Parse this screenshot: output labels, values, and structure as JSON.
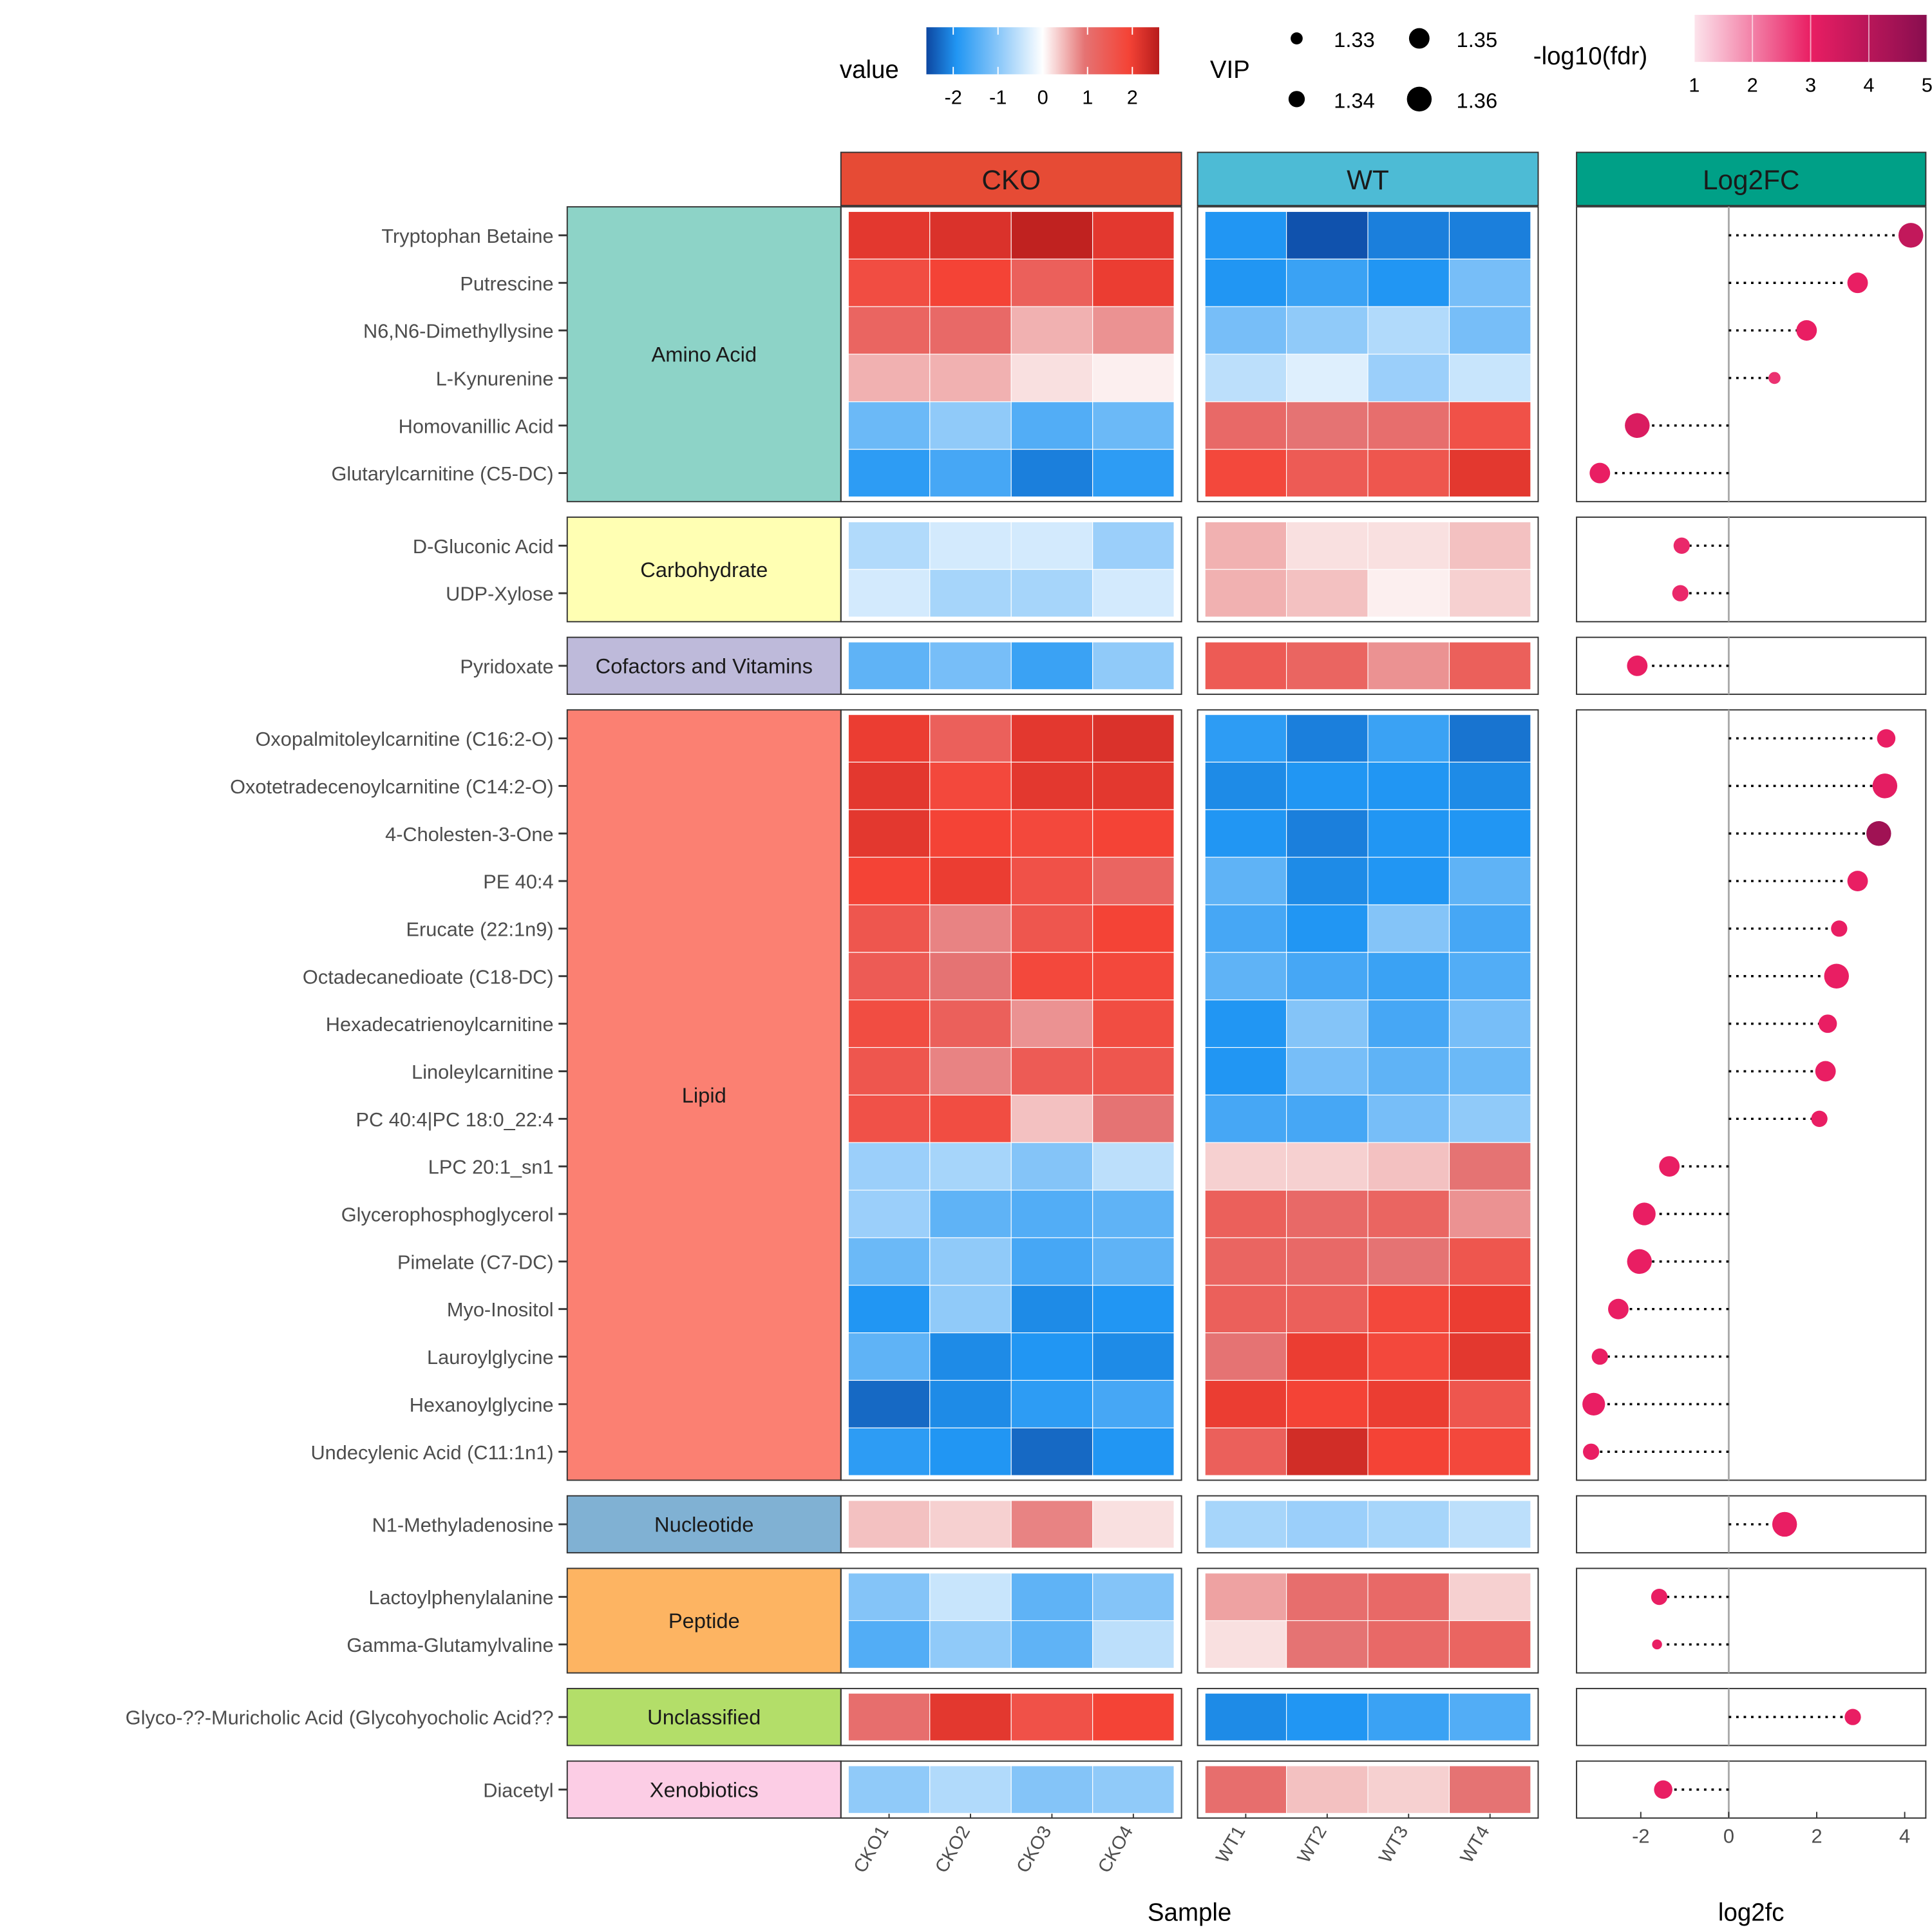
{
  "chart_data": {
    "type": "heatmap",
    "panels": [
      {
        "label": "CKO",
        "color": "#E64B35",
        "samples": [
          "CKO1",
          "CKO2",
          "CKO3",
          "CKO4"
        ]
      },
      {
        "label": "WT",
        "color": "#4DBBD5",
        "samples": [
          "WT1",
          "WT2",
          "WT3",
          "WT4"
        ]
      }
    ],
    "fc_panel": {
      "label": "Log2FC",
      "color": "#00A087",
      "xlabel": "log2fc",
      "xlim": [
        -3.46,
        4.48
      ],
      "ticks": [
        -2,
        0,
        2,
        4
      ]
    },
    "xlabel": "Sample",
    "legend": {
      "value": {
        "title": "value",
        "ticks": [
          -2,
          -1,
          0,
          1,
          2
        ],
        "range": [
          -2.6,
          2.6
        ]
      },
      "vip": {
        "title": "VIP",
        "entries": [
          1.33,
          1.34,
          1.35,
          1.36
        ]
      },
      "fdr": {
        "title": "-log10(fdr)",
        "ticks": [
          1,
          2,
          3,
          4,
          5
        ]
      }
    },
    "groups": [
      {
        "name": "Amino Acid",
        "color": "#8DD3C7",
        "rows": [
          {
            "name": "Tryptophan Betaine",
            "values": [
              2.1,
              2.2,
              2.5,
              2.1,
              -1.9,
              -2.5,
              -2.1,
              -2.1
            ],
            "log2fc": 4.14,
            "fdr": 3.8,
            "vip": 1.36
          },
          {
            "name": "Putrescine",
            "values": [
              1.7,
              1.9,
              1.3,
              2.0,
              -1.9,
              -1.7,
              -1.9,
              -1.2
            ],
            "log2fc": 2.93,
            "fdr": 3.0,
            "vip": 1.35
          },
          {
            "name": "N6,N6-Dimethyllysine",
            "values": [
              1.2,
              1.1,
              0.5,
              0.7,
              -1.2,
              -1.0,
              -0.7,
              -1.2
            ],
            "log2fc": 1.77,
            "fdr": 3.0,
            "vip": 1.35
          },
          {
            "name": "L-Kynurenine",
            "values": [
              0.5,
              0.5,
              0.2,
              0.1,
              -0.6,
              -0.3,
              -0.9,
              -0.5
            ],
            "log2fc": 1.04,
            "fdr": 2.8,
            "vip": 1.33
          },
          {
            "name": "Homovanillic Acid",
            "values": [
              -1.3,
              -1.0,
              -1.5,
              -1.3,
              1.1,
              0.9,
              1.0,
              1.6
            ],
            "log2fc": -2.08,
            "fdr": 3.3,
            "vip": 1.36
          },
          {
            "name": "Glutarylcarnitine (C5-DC)",
            "values": [
              -1.8,
              -1.6,
              -2.1,
              -1.8,
              1.8,
              1.4,
              1.5,
              2.1
            ],
            "log2fc": -2.93,
            "fdr": 3.0,
            "vip": 1.35
          }
        ]
      },
      {
        "name": "Carbohydrate",
        "color": "#FFFFB3",
        "rows": [
          {
            "name": "D-Gluconic Acid",
            "values": [
              -0.7,
              -0.4,
              -0.4,
              -0.9,
              0.5,
              0.2,
              0.2,
              0.4
            ],
            "log2fc": -1.07,
            "fdr": 2.9,
            "vip": 1.34
          },
          {
            "name": "UDP-Xylose",
            "values": [
              -0.4,
              -0.8,
              -0.8,
              -0.4,
              0.5,
              0.4,
              0.1,
              0.3
            ],
            "log2fc": -1.1,
            "fdr": 2.9,
            "vip": 1.34
          }
        ]
      },
      {
        "name": "Cofactors and Vitamins",
        "color": "#BEBADA",
        "rows": [
          {
            "name": "Pyridoxate",
            "values": [
              -1.4,
              -1.2,
              -1.7,
              -1.0,
              1.4,
              1.2,
              0.7,
              1.3
            ],
            "log2fc": -2.08,
            "fdr": 3.0,
            "vip": 1.35
          }
        ]
      },
      {
        "name": "Lipid",
        "color": "#FB8072",
        "rows": [
          {
            "name": "Oxopalmitoleylcarnitine (C16:2-O)",
            "values": [
              2.0,
              1.3,
              2.1,
              2.2,
              -1.8,
              -2.1,
              -1.7,
              -2.2
            ],
            "log2fc": 3.58,
            "fdr": 3.0,
            "vip": 1.345
          },
          {
            "name": "Oxotetradecenoylcarnitine (C14:2-O)",
            "values": [
              2.1,
              1.8,
              2.1,
              2.1,
              -2.0,
              -1.9,
              -1.9,
              -2.0
            ],
            "log2fc": 3.55,
            "fdr": 3.1,
            "vip": 1.36
          },
          {
            "name": "4-Cholesten-3-One",
            "values": [
              2.1,
              1.9,
              1.8,
              1.9,
              -1.9,
              -2.1,
              -1.9,
              -1.9
            ],
            "log2fc": 3.41,
            "fdr": 4.5,
            "vip": 1.36
          },
          {
            "name": "PE 40:4",
            "values": [
              1.9,
              2.0,
              1.6,
              1.2,
              -1.4,
              -2.0,
              -1.9,
              -1.4
            ],
            "log2fc": 2.93,
            "fdr": 3.0,
            "vip": 1.35
          },
          {
            "name": "Erucate (22:1n9)",
            "values": [
              1.5,
              0.8,
              1.5,
              1.9,
              -1.6,
              -1.9,
              -1.1,
              -1.6
            ],
            "log2fc": 2.51,
            "fdr": 3.0,
            "vip": 1.34
          },
          {
            "name": "Octadecanedioate (C18-DC)",
            "values": [
              1.4,
              0.9,
              1.8,
              1.8,
              -1.4,
              -1.6,
              -1.7,
              -1.5
            ],
            "log2fc": 2.45,
            "fdr": 3.0,
            "vip": 1.36
          },
          {
            "name": "Hexadecatrienoylcarnitine",
            "values": [
              1.7,
              1.3,
              0.7,
              1.7,
              -1.9,
              -1.1,
              -1.6,
              -1.2
            ],
            "log2fc": 2.25,
            "fdr": 3.0,
            "vip": 1.345
          },
          {
            "name": "Linoleylcarnitine",
            "values": [
              1.5,
              0.8,
              1.4,
              1.5,
              -1.9,
              -1.2,
              -1.4,
              -1.3
            ],
            "log2fc": 2.2,
            "fdr": 3.0,
            "vip": 1.35
          },
          {
            "name": "PC 40:4|PC 18:0_22:4",
            "values": [
              1.6,
              1.7,
              0.4,
              0.9,
              -1.6,
              -1.6,
              -1.2,
              -1.0
            ],
            "log2fc": 2.06,
            "fdr": 3.0,
            "vip": 1.34
          },
          {
            "name": "LPC 20:1_sn1",
            "values": [
              -0.9,
              -0.8,
              -1.1,
              -0.6,
              0.3,
              0.3,
              0.4,
              0.9
            ],
            "log2fc": -1.35,
            "fdr": 3.0,
            "vip": 1.35
          },
          {
            "name": "Glycerophosphoglycerol",
            "values": [
              -0.9,
              -1.4,
              -1.5,
              -1.4,
              1.3,
              1.1,
              1.2,
              0.7
            ],
            "log2fc": -1.92,
            "fdr": 3.0,
            "vip": 1.355
          },
          {
            "name": "Pimelate (C7-DC)",
            "values": [
              -1.3,
              -1.0,
              -1.6,
              -1.4,
              1.2,
              1.1,
              0.9,
              1.5
            ],
            "log2fc": -2.03,
            "fdr": 3.0,
            "vip": 1.36
          },
          {
            "name": "Myo-Inositol",
            "values": [
              -1.9,
              -1.0,
              -2.0,
              -1.9,
              1.3,
              1.3,
              1.8,
              2.0
            ],
            "log2fc": -2.51,
            "fdr": 3.0,
            "vip": 1.35
          },
          {
            "name": "Lauroylglycine",
            "values": [
              -1.4,
              -2.0,
              -1.9,
              -2.0,
              0.9,
              2.0,
              1.8,
              2.1
            ],
            "log2fc": -2.93,
            "fdr": 3.0,
            "vip": 1.34
          },
          {
            "name": "Hexanoylglycine",
            "values": [
              -2.3,
              -2.0,
              -1.8,
              -1.6,
              2.0,
              1.9,
              2.0,
              1.5
            ],
            "log2fc": -3.07,
            "fdr": 3.0,
            "vip": 1.355
          },
          {
            "name": "Undecylenic Acid (C11:1n1)",
            "values": [
              -1.8,
              -1.9,
              -2.3,
              -1.9,
              1.3,
              2.3,
              1.9,
              1.8
            ],
            "log2fc": -3.13,
            "fdr": 3.0,
            "vip": 1.34
          }
        ]
      },
      {
        "name": "Nucleotide",
        "color": "#80B1D3",
        "rows": [
          {
            "name": "N1-Methyladenosine",
            "values": [
              0.4,
              0.3,
              0.8,
              0.2,
              -0.8,
              -0.9,
              -0.8,
              -0.6
            ],
            "log2fc": 1.27,
            "fdr": 3.0,
            "vip": 1.36
          }
        ]
      },
      {
        "name": "Peptide",
        "color": "#FDB462",
        "rows": [
          {
            "name": "Lactoylphenylalanine",
            "values": [
              -1.1,
              -0.5,
              -1.4,
              -1.1,
              0.6,
              1.0,
              1.1,
              0.3
            ],
            "log2fc": -1.58,
            "fdr": 3.0,
            "vip": 1.34
          },
          {
            "name": "Gamma-Glutamylvaline",
            "values": [
              -1.5,
              -1.0,
              -1.4,
              -0.6,
              0.2,
              0.9,
              1.1,
              1.2
            ],
            "log2fc": -1.63,
            "fdr": 3.0,
            "vip": 1.325
          }
        ]
      },
      {
        "name": "Unclassified",
        "color": "#B3DE69",
        "rows": [
          {
            "name": "Glyco-??-Muricholic Acid (Glycohyocholic Acid??",
            "values": [
              1.0,
              2.1,
              1.6,
              1.9,
              -2.0,
              -1.9,
              -1.7,
              -1.5
            ],
            "log2fc": 2.82,
            "fdr": 3.0,
            "vip": 1.34
          }
        ]
      },
      {
        "name": "Xenobiotics",
        "color": "#FCCDE5",
        "rows": [
          {
            "name": "Diacetyl",
            "values": [
              -1.0,
              -0.7,
              -1.1,
              -1.0,
              1.0,
              0.4,
              0.3,
              0.9
            ],
            "log2fc": -1.49,
            "fdr": 3.0,
            "vip": 1.345
          }
        ]
      }
    ]
  }
}
